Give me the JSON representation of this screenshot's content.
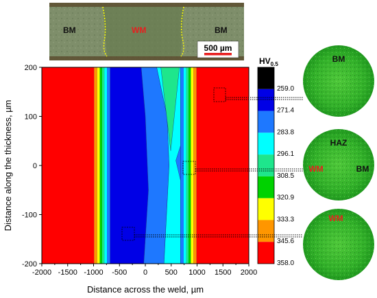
{
  "chart_data": {
    "type": "heatmap",
    "xlabel": "Distance across the weld, µm",
    "ylabel": "Distance along the thickness, µm",
    "xlim": [
      -2000,
      2000
    ],
    "ylim": [
      -200,
      200
    ],
    "x_ticks": [
      "-2000",
      "-1500",
      "-1000",
      "-500",
      "0",
      "500",
      "1000",
      "1500",
      "2000"
    ],
    "y_ticks": [
      "-200",
      "-100",
      "0",
      "100",
      "200"
    ],
    "colorbar": {
      "title_main": "HV",
      "title_sub": "0.5",
      "levels": [
        "259.0",
        "271.4",
        "283.8",
        "296.1",
        "308.5",
        "320.9",
        "333.3",
        "345.6",
        "358.0"
      ],
      "colors": [
        "#000000",
        "#0000e6",
        "#1e78ff",
        "#00ffff",
        "#1ee68c",
        "#00d200",
        "#ffff00",
        "#ff9600",
        "#ff0000"
      ]
    },
    "bands": [
      {
        "x0": -2000,
        "x1": -990,
        "color": "#ff0000"
      },
      {
        "x0": -990,
        "x1": -930,
        "color": "#ff9600"
      },
      {
        "x0": -930,
        "x1": -880,
        "color": "#ffff00"
      },
      {
        "x0": -880,
        "x1": -835,
        "color": "#00d200"
      },
      {
        "x0": -835,
        "x1": -790,
        "color": "#1ee68c"
      },
      {
        "x0": -790,
        "x1": -740,
        "color": "#00ffff"
      },
      {
        "x0": -740,
        "x1": -680,
        "color": "#1e78ff"
      },
      {
        "x0": 680,
        "x1": 740,
        "color": "#1e78ff"
      },
      {
        "x0": 740,
        "x1": 790,
        "color": "#00ffff"
      },
      {
        "x0": 790,
        "x1": 835,
        "color": "#1ee68c"
      },
      {
        "x0": 835,
        "x1": 880,
        "color": "#00d200"
      },
      {
        "x0": 880,
        "x1": 930,
        "color": "#ffff00"
      },
      {
        "x0": 930,
        "x1": 990,
        "color": "#ff9600"
      },
      {
        "x0": 990,
        "x1": 2000,
        "color": "#ff0000"
      }
    ],
    "regions": [
      {
        "color": "#0000e6",
        "points": [
          [
            -680,
            200
          ],
          [
            -80,
            200
          ],
          [
            0,
            100
          ],
          [
            60,
            -50
          ],
          [
            -30,
            -200
          ],
          [
            -680,
            -200
          ]
        ]
      },
      {
        "color": "#1e78ff",
        "points": [
          [
            -80,
            200
          ],
          [
            220,
            200
          ],
          [
            420,
            100
          ],
          [
            460,
            0
          ],
          [
            360,
            -200
          ],
          [
            -30,
            -200
          ],
          [
            60,
            -50
          ],
          [
            0,
            100
          ]
        ]
      },
      {
        "color": "#00ffff",
        "points": [
          [
            220,
            200
          ],
          [
            680,
            200
          ],
          [
            680,
            -200
          ],
          [
            360,
            -200
          ],
          [
            460,
            0
          ],
          [
            420,
            100
          ]
        ]
      },
      {
        "color": "#1ee68c",
        "points": [
          [
            300,
            200
          ],
          [
            660,
            200
          ],
          [
            490,
            30
          ]
        ]
      },
      {
        "color": "#1e78ff",
        "points": [
          [
            590,
            10
          ],
          [
            680,
            -30
          ],
          [
            680,
            40
          ]
        ]
      }
    ],
    "inset": {
      "labels": {
        "bm_left": "BM",
        "wm": "WM",
        "bm_right": "BM"
      },
      "scale_bar": "500 µm"
    },
    "micrographs": [
      {
        "labels": [
          "BM"
        ]
      },
      {
        "labels": [
          "HAZ",
          "WM",
          "BM"
        ]
      },
      {
        "labels": [
          "WM"
        ]
      }
    ]
  }
}
